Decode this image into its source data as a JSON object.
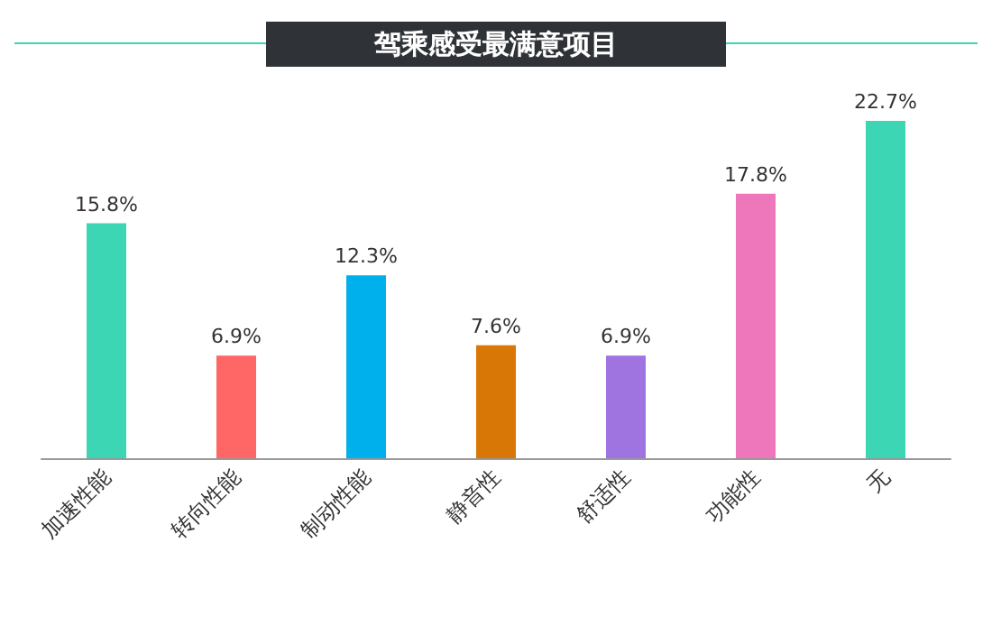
{
  "chart_data": {
    "type": "bar",
    "title": "驾乘感受最满意项目",
    "categories": [
      "加速性能",
      "转向性能",
      "制动性能",
      "静音性",
      "舒适性",
      "功能性",
      "无"
    ],
    "values": [
      15.8,
      6.9,
      12.3,
      7.6,
      6.9,
      17.8,
      22.7
    ],
    "value_labels": [
      "15.8%",
      "6.9%",
      "12.3%",
      "7.6%",
      "6.9%",
      "17.8%",
      "22.7%"
    ],
    "colors": [
      "#3dd6b5",
      "#ff6666",
      "#00b0ec",
      "#d97706",
      "#9f74e0",
      "#ee77bb",
      "#3dd6b5"
    ]
  }
}
